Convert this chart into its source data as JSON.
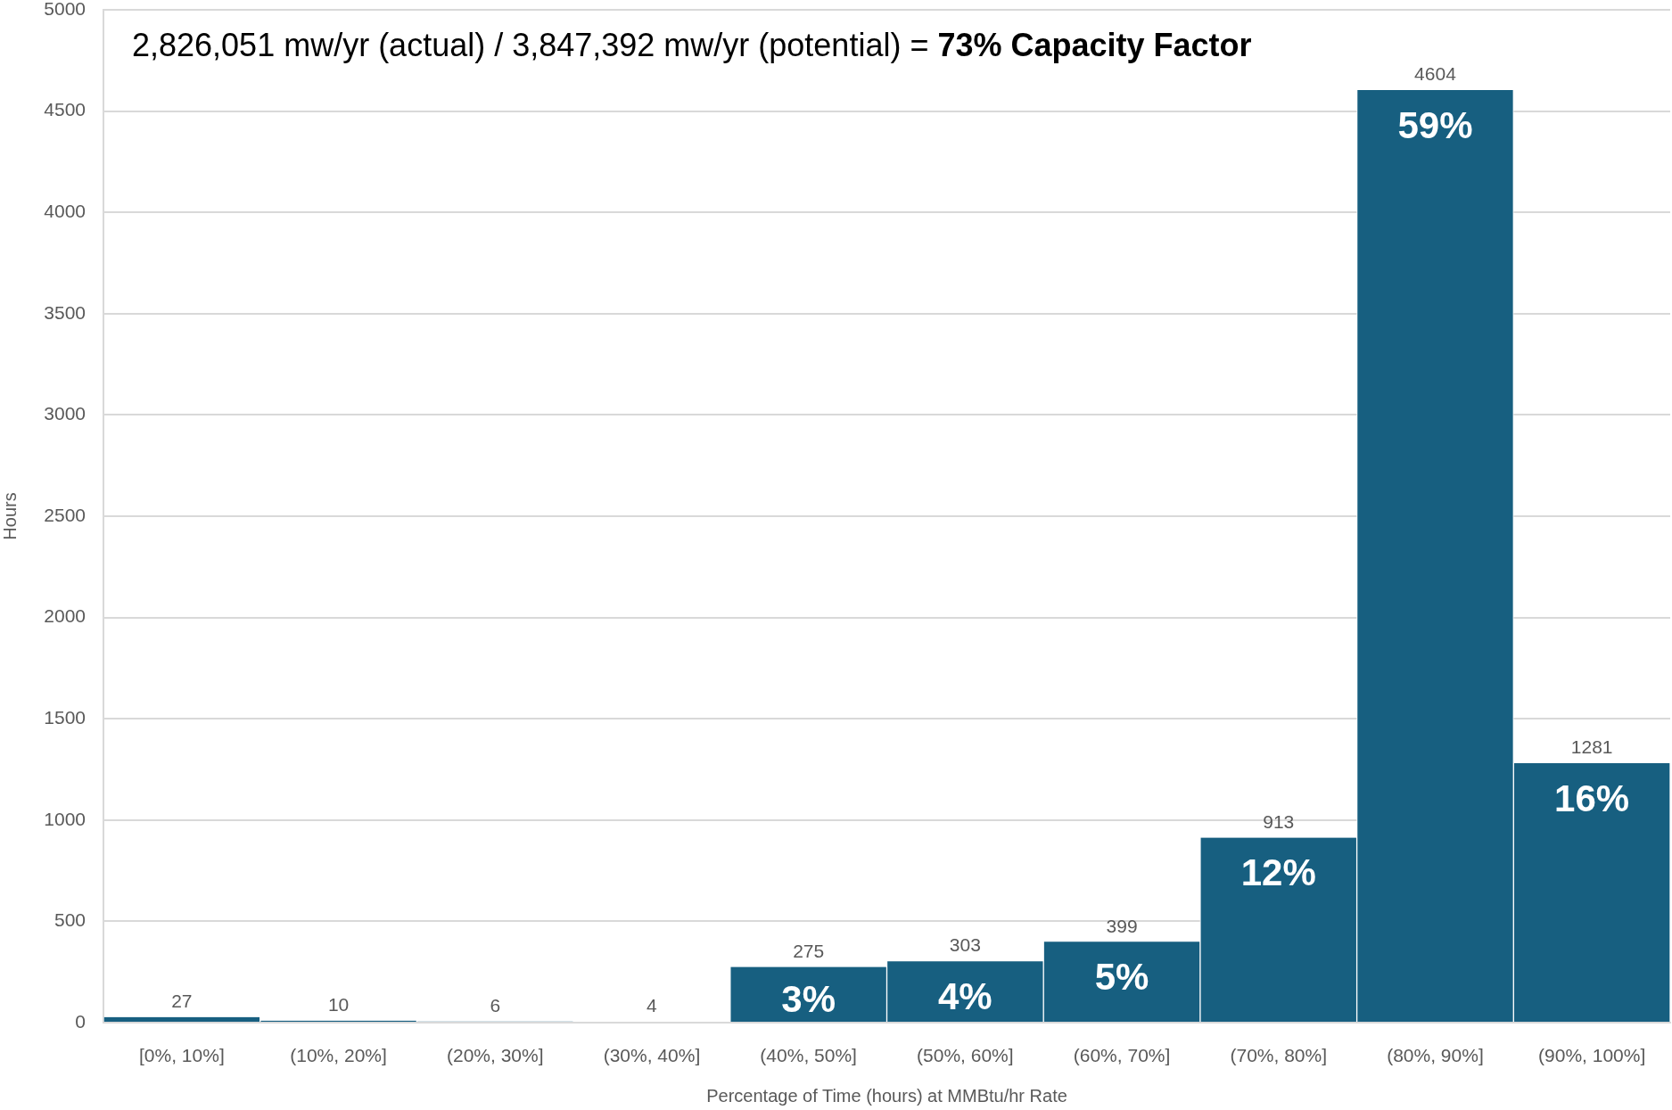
{
  "chart_data": {
    "type": "bar",
    "title": "2,826,051 mw/yr (actual) / 3,847,392 mw/yr (potential) =",
    "subtitle": "73% Capacity Factor",
    "xlabel": "Percentage of Time (hours) at MMBtu/hr Rate",
    "ylabel": "Hours",
    "categories": [
      "[0%, 10%]",
      "(10%, 20%]",
      "(20%, 30%]",
      "(30%, 40%]",
      "(40%, 50%]",
      "(50%, 60%]",
      "(60%, 70%]",
      "(70%, 80%]",
      "(80%, 90%]",
      "(90%, 100%]"
    ],
    "values": [
      27,
      10,
      6,
      4,
      275,
      303,
      399,
      913,
      4604,
      1281
    ],
    "color": "#175f80",
    "ylim": [
      0,
      5000
    ],
    "yticks": [
      0,
      500,
      1000,
      1500,
      2000,
      2500,
      3000,
      3500,
      4000,
      4500,
      5000
    ],
    "grid": "y",
    "legend": false,
    "data_labels": true,
    "annotations": [
      {
        "text": "3%",
        "x": "(40%, 50%]",
        "y": 275
      },
      {
        "text": "4%",
        "x": "(50%, 60%]",
        "y": 303
      },
      {
        "text": "5%",
        "x": "(60%, 70%]",
        "y": 399
      },
      {
        "text": "12%",
        "x": "(70%, 80%]",
        "y": 913
      },
      {
        "text": "59%",
        "x": "(80%, 90%]",
        "y": 4604
      },
      {
        "text": "16%",
        "x": "(90%, 100%]",
        "y": 1281
      }
    ]
  }
}
